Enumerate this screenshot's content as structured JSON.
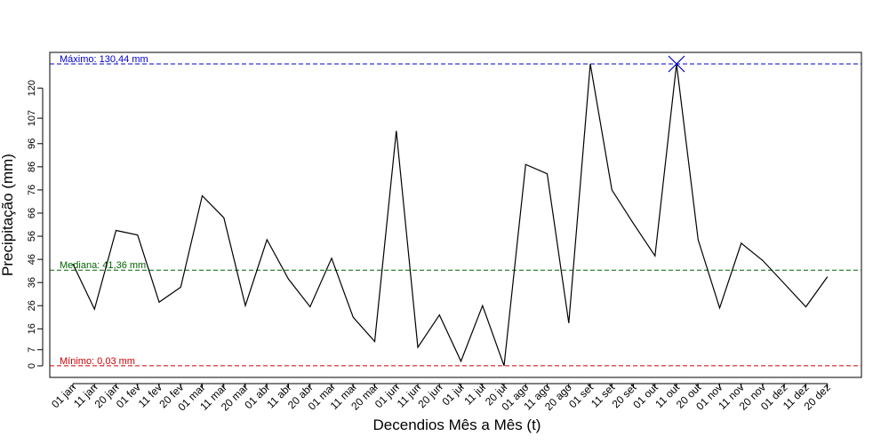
{
  "chart_data": {
    "type": "line",
    "xlabel": "Decendios Mês a Mês (t)",
    "ylabel": "Precipitação (mm)",
    "ylim": [
      0,
      130.44
    ],
    "y_ticks": [
      0,
      7,
      16,
      26,
      36,
      46,
      56,
      66,
      76,
      86,
      96,
      107,
      120
    ],
    "grid": false,
    "categories": [
      "01 jan",
      "11 jan",
      "20 jan",
      "01 fev",
      "11 fev",
      "20 fev",
      "01 mar",
      "11 mar",
      "20 mar",
      "01 abr",
      "11 abr",
      "20 abr",
      "01 mai",
      "11 mai",
      "20 mai",
      "01 jun",
      "11 jun",
      "20 jun",
      "01 jul",
      "11 jul",
      "20 jul",
      "01 ago",
      "11 ago",
      "20 ago",
      "01 set",
      "11 set",
      "20 set",
      "01 out",
      "11 out",
      "20 out",
      "01 nov",
      "11 nov",
      "20 nov",
      "01 dez",
      "11 dez",
      "20 dez"
    ],
    "series": [
      {
        "values": [
          44,
          24.5,
          58.5,
          56.5,
          27.5,
          34,
          73.5,
          64,
          26,
          54.5,
          37.5,
          25.5,
          46.5,
          21,
          10.5,
          101.5,
          8,
          22,
          2,
          26,
          0.03,
          87,
          83,
          18.5,
          130.44,
          76,
          61.5,
          47.5,
          130.44,
          54.5,
          25,
          53,
          45.5,
          35.5,
          25.5,
          38.5
        ],
        "color": "#000000"
      }
    ],
    "reference_lines": [
      {
        "label": "Máximo:  130,44 mm",
        "value": 130.44,
        "color": "#0000cc"
      },
      {
        "label": "Mediana:  41,36 mm",
        "value": 41.36,
        "color": "#006400"
      },
      {
        "label": "Mínimo:  0,03 mm",
        "value": 0.03,
        "color": "#cc0000"
      }
    ],
    "max_marker": {
      "category": "11 out",
      "value": 130.44,
      "color": "#0000cc"
    }
  }
}
